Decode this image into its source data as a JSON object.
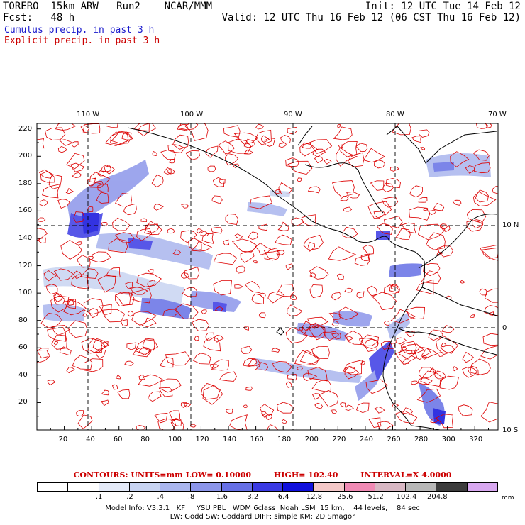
{
  "header": {
    "model": "TORERO  15km ARW   Run2    NCAR/MMM",
    "init": "Init: 12 UTC Tue 14 Feb 12",
    "fcst": "Fcst:   48 h",
    "valid": "Valid: 12 UTC Thu 16 Feb 12 (06 CST Thu 16 Feb 12)",
    "cumulus": "Cumulus precip. in past 3 h",
    "explicit": "Explicit precip. in past 3 h"
  },
  "colors": {
    "cumulus": "#1a1acc",
    "explicit": "#cc0000",
    "contour": "#dd0000",
    "land": "#ffffff",
    "coast": "#000000"
  },
  "axes": {
    "lon_labels": [
      "110 W",
      "100 W",
      "90 W",
      "80 W",
      "70 W"
    ],
    "lat_labels": [
      "10 N",
      "0",
      "10 S"
    ],
    "x_ticks": [
      "20",
      "40",
      "60",
      "80",
      "100",
      "120",
      "140",
      "160",
      "180",
      "200",
      "220",
      "240",
      "260",
      "280",
      "300",
      "320"
    ],
    "y_ticks": [
      "220",
      "200",
      "180",
      "160",
      "140",
      "120",
      "100",
      "80",
      "60",
      "40",
      "20"
    ]
  },
  "contours": {
    "units": "CONTOURS:  UNITS=mm  LOW= 0.10000",
    "high": "HIGH=  102.40",
    "interval": "INTERVAL=X  4.0000"
  },
  "colorbar": {
    "colors": [
      "#ffffff",
      "#ffffff",
      "#e4eaf8",
      "#c8d4f2",
      "#aab6ee",
      "#8c96ea",
      "#6670e6",
      "#3a3ae4",
      "#1010dc",
      "#f4c8c8",
      "#f08ab4",
      "#d8b8c4",
      "#b8b8b8",
      "#3c3c3c",
      "#d8a8f0"
    ],
    "labels": [
      ".1",
      ".2",
      ".4",
      ".8",
      "1.6",
      "3.2",
      "6.4",
      "12.8",
      "25.6",
      "51.2",
      "102.4",
      "204.8"
    ],
    "unit": "mm"
  },
  "model_info": {
    "line1": "Model Info: V3.3.1   KF     YSU PBL   WDM 6class  Noah LSM  15 km,    44 levels,    84 sec",
    "line2": "LW: Godd SW: Goddard DIFF: simple KM: 2D Smagor"
  }
}
